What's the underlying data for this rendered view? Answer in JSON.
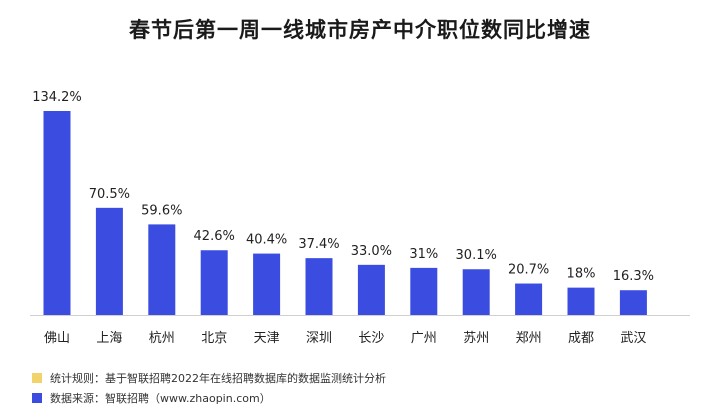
{
  "title": "春节后第一周一线城市房产中介职位数同比增速",
  "colors": {
    "bar": "#3a4de0",
    "note": "#f2d36b",
    "source": "#3a4de0"
  },
  "legend": {
    "note": "统计规则：基于智联招聘2022年在线招聘数据库的数据监测统计分析",
    "source": "数据来源：智联招聘（www.zhaopin.com）"
  },
  "chart_data": {
    "type": "bar",
    "title": "春节后第一周一线城市房产中介职位数同比增速",
    "categories": [
      "佛山",
      "上海",
      "杭州",
      "北京",
      "天津",
      "深圳",
      "长沙",
      "广州",
      "苏州",
      "郑州",
      "成都",
      "武汉"
    ],
    "values": [
      134.2,
      70.5,
      59.6,
      42.6,
      40.4,
      37.4,
      33.0,
      31,
      30.1,
      20.7,
      18,
      16.3
    ],
    "value_labels": [
      "134.2%",
      "70.5%",
      "59.6%",
      "42.6%",
      "40.4%",
      "37.4%",
      "33.0%",
      "31%",
      "30.1%",
      "20.7%",
      "18%",
      "16.3%"
    ],
    "ylim": [
      0,
      140
    ],
    "grid": false,
    "legend": "bottom-left"
  }
}
